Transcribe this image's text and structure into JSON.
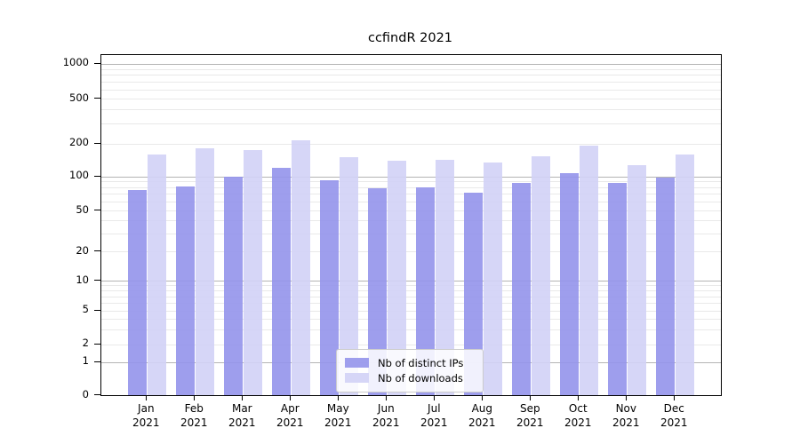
{
  "title": "ccfindR 2021",
  "colors": {
    "bar_distinct_ips": "rgba(147,147,235,0.9)",
    "bar_downloads": "rgba(210,210,246,0.9)",
    "grid_major": "#b4b4b4",
    "grid_minor": "#e9e9e9",
    "spine": "#000000",
    "legend_border": "#cccccc"
  },
  "legend": {
    "position": "lower center"
  },
  "axes": {
    "y_tick_labels": [
      "0",
      "1",
      "2",
      "5",
      "10",
      "20",
      "50",
      "100",
      "200",
      "500",
      "1000"
    ],
    "x_year_label": "2021"
  },
  "chart_data": {
    "type": "bar",
    "title": "ccfindR 2021",
    "categories": [
      "Jan",
      "Feb",
      "Mar",
      "Apr",
      "May",
      "Jun",
      "Jul",
      "Aug",
      "Sep",
      "Oct",
      "Nov",
      "Dec"
    ],
    "category_year": "2021",
    "series": [
      {
        "name": "Nb of distinct IPs",
        "key": "distinct-ips",
        "color": "rgba(147,147,235,0.9)",
        "values": [
          76,
          82,
          100,
          120,
          92,
          78,
          80,
          72,
          88,
          107,
          87,
          97
        ]
      },
      {
        "name": "Nb of downloads",
        "key": "downloads",
        "color": "rgba(210,210,246,0.9)",
        "values": [
          158,
          182,
          175,
          215,
          150,
          140,
          143,
          133,
          154,
          190,
          126,
          160
        ]
      }
    ],
    "xlabel": "",
    "ylabel": "",
    "yscale": "symlog",
    "yticks": [
      0,
      1,
      2,
      5,
      10,
      20,
      50,
      100,
      200,
      500,
      1000
    ],
    "ylim": [
      0,
      1300
    ],
    "grid": true,
    "legend_position": "lower center"
  }
}
